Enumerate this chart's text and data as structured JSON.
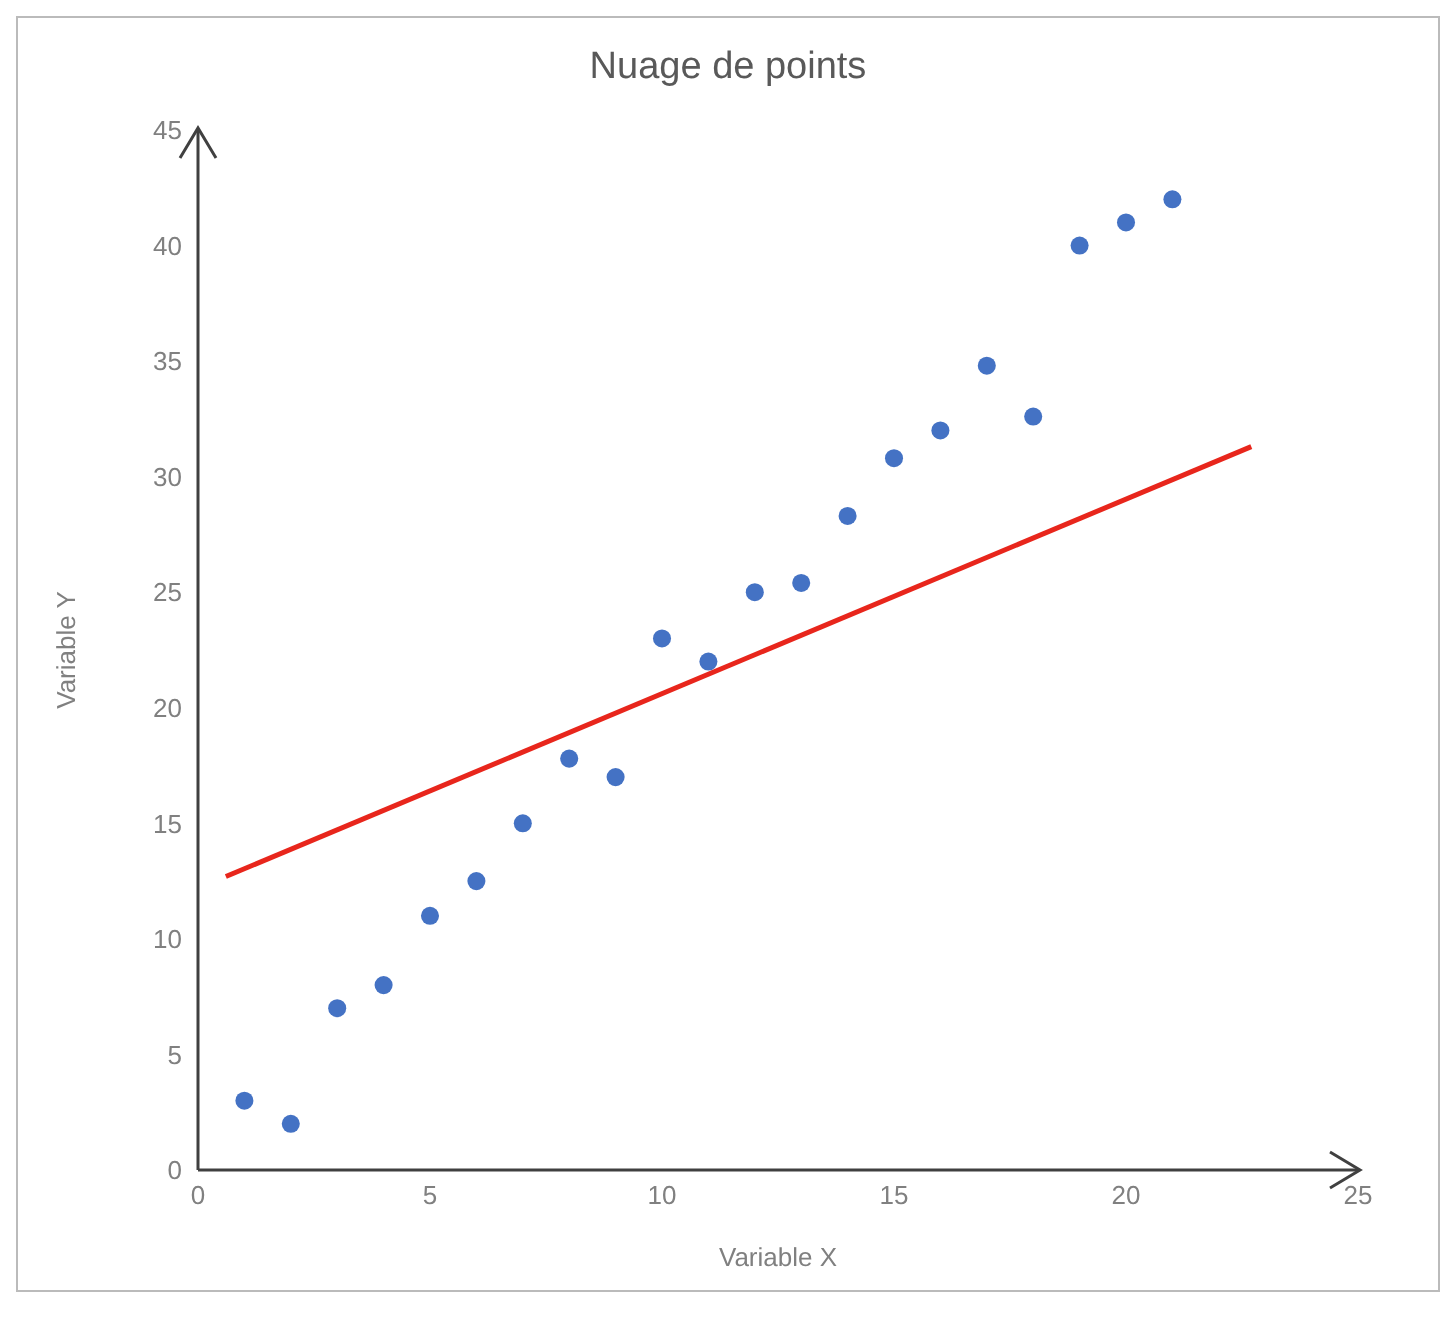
{
  "chart_data": {
    "type": "scatter",
    "title": "Nuage de points",
    "xlabel": "Variable X",
    "ylabel": "Variable Y",
    "xlim": [
      0,
      25
    ],
    "xticks": [
      0,
      5,
      10,
      15,
      20,
      25
    ],
    "ylim": [
      0,
      45
    ],
    "yticks": [
      0,
      5,
      10,
      15,
      20,
      25,
      30,
      35,
      40,
      45
    ],
    "grid": false,
    "series": [
      {
        "color": "#4472c4",
        "marker": "circle",
        "x": [
          1,
          2,
          3,
          4,
          5,
          6,
          7,
          8,
          9,
          10,
          11,
          12,
          13,
          14,
          15,
          16,
          17,
          18,
          19,
          20,
          21
        ],
        "values": [
          3,
          2,
          7,
          8,
          11,
          12.5,
          15,
          17.8,
          17,
          23,
          22,
          25,
          25.4,
          28.3,
          30.8,
          32,
          34.8,
          32.6,
          40,
          41,
          42
        ]
      },
      {
        "type": "line",
        "color": "#e8261c",
        "x": [
          0.6,
          22.7
        ],
        "values": [
          12.7,
          31.3
        ]
      }
    ]
  }
}
